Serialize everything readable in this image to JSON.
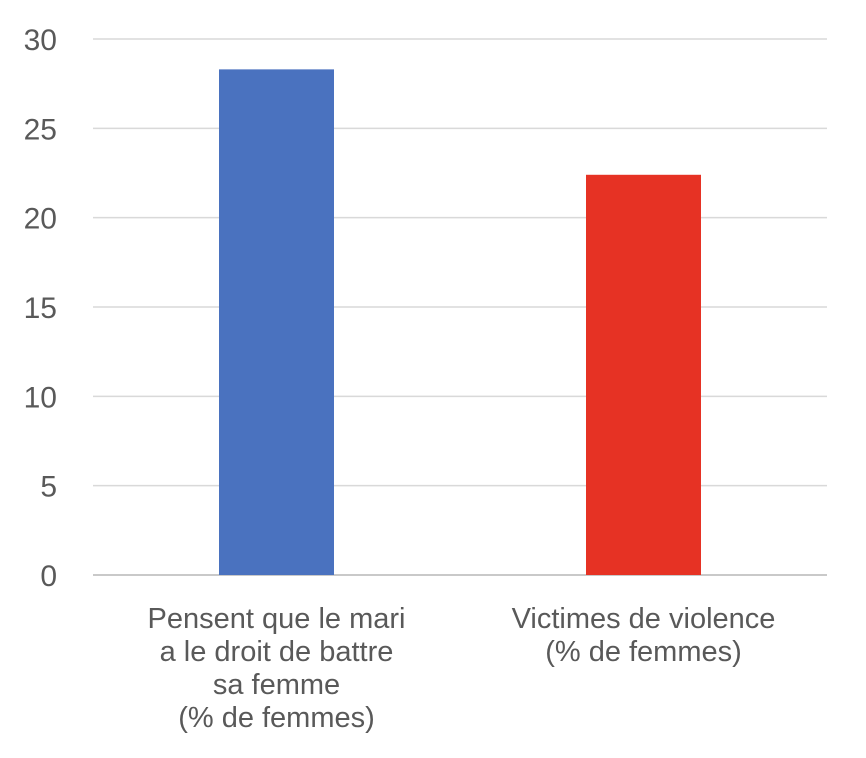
{
  "chart_data": {
    "type": "bar",
    "categories": [
      [
        "Pensent que le mari",
        "a le droit de battre",
        "sa femme",
        "(% de femmes)"
      ],
      [
        "Victimes de violence",
        "(% de femmes)"
      ]
    ],
    "values": [
      28.3,
      22.4
    ],
    "colors": [
      "#4a72bf",
      "#e63224"
    ],
    "ylim": [
      0,
      30
    ],
    "yticks": [
      "0",
      "5",
      "10",
      "15",
      "20",
      "25",
      "30"
    ],
    "grid": true,
    "title": "",
    "xlabel": "",
    "ylabel": ""
  }
}
